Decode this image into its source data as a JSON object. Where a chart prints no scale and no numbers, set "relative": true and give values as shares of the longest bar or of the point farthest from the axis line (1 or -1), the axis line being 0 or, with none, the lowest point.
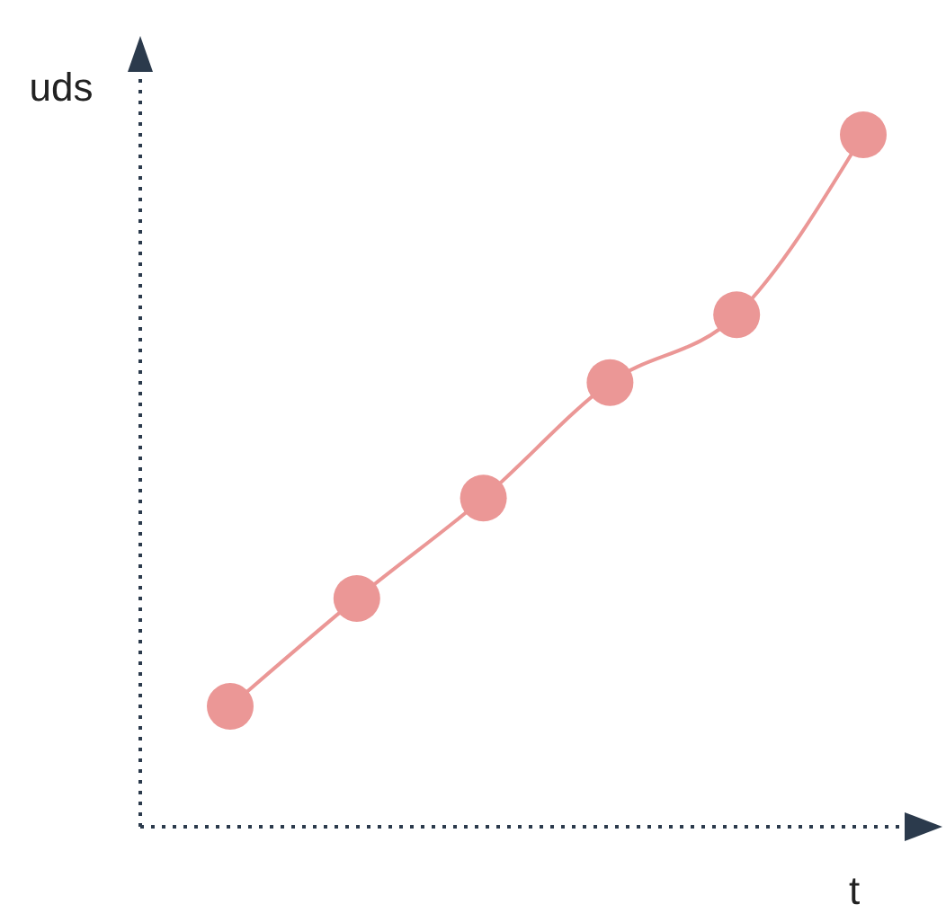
{
  "chart_data": {
    "type": "line",
    "xlabel": "t",
    "ylabel": "uds",
    "relative": true,
    "marker": "circle",
    "line_style": "solid",
    "categories": [
      null,
      null,
      null,
      null,
      null,
      null
    ],
    "series": [
      {
        "color": "#eb9796",
        "values": [
          0.174,
          0.33,
          0.475,
          0.642,
          0.74,
          1
        ]
      }
    ]
  }
}
